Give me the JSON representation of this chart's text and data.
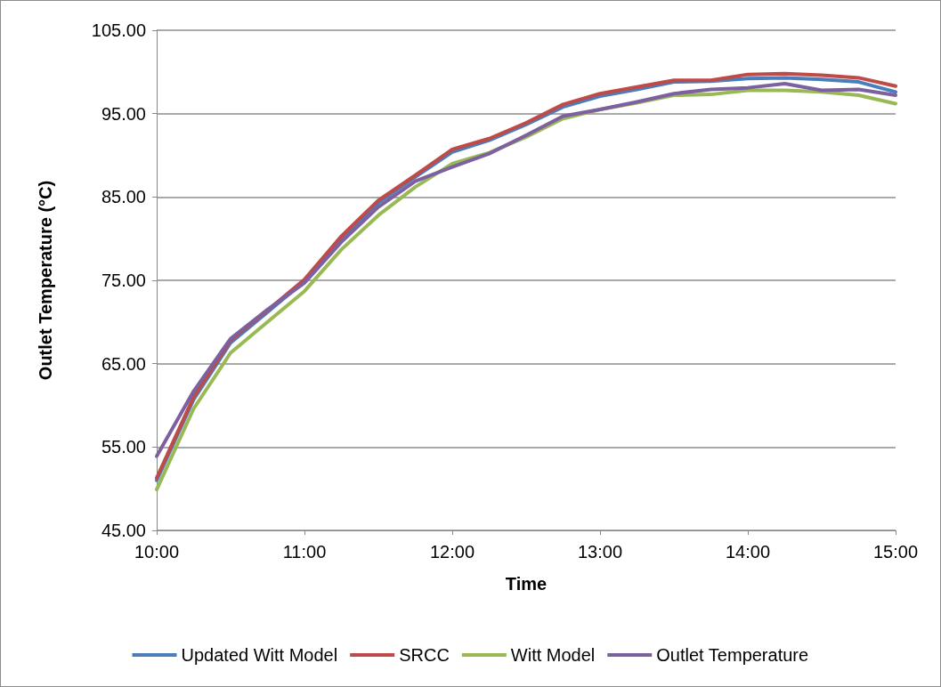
{
  "chart_data": {
    "type": "line",
    "xlabel": "Time",
    "ylabel": "Outlet Temperature (°C)",
    "x": [
      10,
      10.25,
      10.5,
      10.75,
      11,
      11.25,
      11.5,
      11.75,
      12,
      12.25,
      12.5,
      12.75,
      13,
      13.25,
      13.5,
      13.75,
      14,
      14.25,
      14.5,
      14.75,
      15
    ],
    "xlim": [
      10,
      15
    ],
    "xticks": [
      {
        "value": 10,
        "label": "10:00"
      },
      {
        "value": 11,
        "label": "11:00"
      },
      {
        "value": 12,
        "label": "12:00"
      },
      {
        "value": 13,
        "label": "13:00"
      },
      {
        "value": 14,
        "label": "14:00"
      },
      {
        "value": 15,
        "label": "15:00"
      }
    ],
    "ylim": [
      45,
      105
    ],
    "yticks": [
      {
        "value": 45,
        "label": "45.00"
      },
      {
        "value": 55,
        "label": "55.00"
      },
      {
        "value": 65,
        "label": "65.00"
      },
      {
        "value": 75,
        "label": "75.00"
      },
      {
        "value": 85,
        "label": "85.00"
      },
      {
        "value": 95,
        "label": "95.00"
      },
      {
        "value": 105,
        "label": "105.00"
      }
    ],
    "grid": "y",
    "legend": "bottom",
    "marker": "none",
    "line_style": "solid",
    "series": [
      {
        "name": "Updated Witt Model",
        "color": "#4a7ebb",
        "values": [
          51.0,
          60.7,
          67.5,
          71.2,
          74.9,
          80.0,
          84.3,
          87.4,
          90.4,
          91.8,
          93.7,
          95.8,
          97.1,
          97.9,
          98.8,
          98.9,
          99.2,
          99.3,
          99.1,
          98.8,
          97.6
        ]
      },
      {
        "name": "SRCC",
        "color": "#be4b48",
        "values": [
          51.3,
          61.0,
          67.8,
          71.4,
          75.1,
          80.3,
          84.6,
          87.6,
          90.7,
          92.0,
          93.9,
          96.1,
          97.4,
          98.2,
          99.0,
          99.0,
          99.7,
          99.8,
          99.6,
          99.3,
          98.3
        ]
      },
      {
        "name": "Witt Model",
        "color": "#98b954",
        "values": [
          49.9,
          59.6,
          66.3,
          70.0,
          73.7,
          78.7,
          82.8,
          86.2,
          89.0,
          90.3,
          92.2,
          94.4,
          95.5,
          96.3,
          97.2,
          97.3,
          97.8,
          97.8,
          97.6,
          97.2,
          96.2
        ]
      },
      {
        "name": "Outlet Temperature",
        "color": "#7d60a0",
        "values": [
          53.9,
          61.7,
          68.0,
          71.5,
          74.7,
          79.6,
          83.8,
          86.9,
          88.6,
          90.2,
          92.4,
          94.7,
          95.5,
          96.4,
          97.4,
          97.9,
          98.1,
          98.6,
          97.8,
          97.9,
          97.2
        ]
      }
    ]
  }
}
